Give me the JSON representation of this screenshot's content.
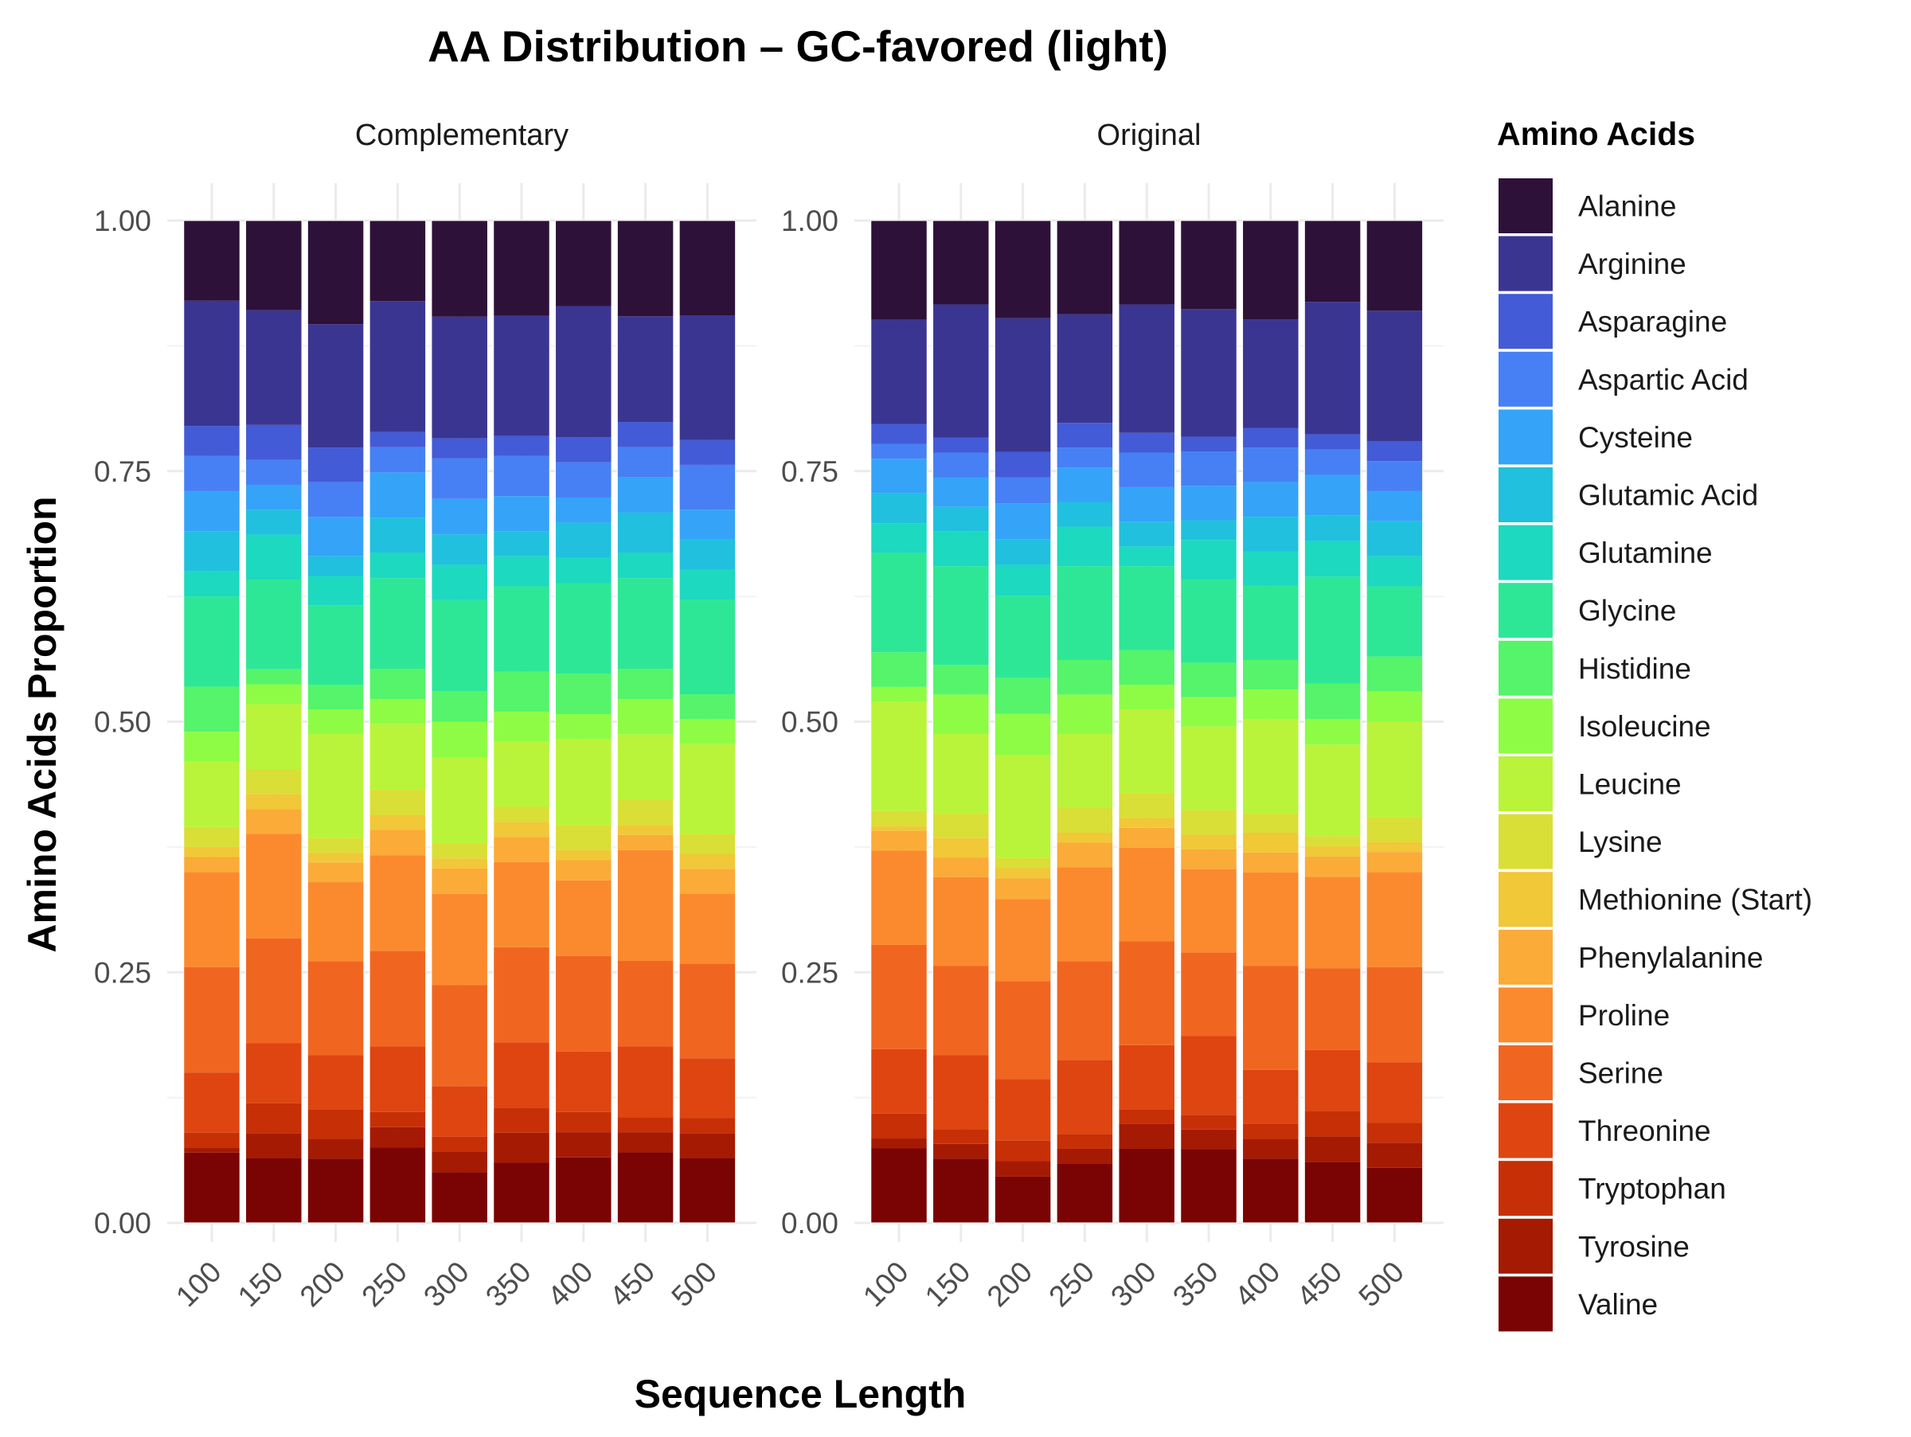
{
  "chart_data": {
    "type": "bar",
    "stacked": true,
    "normalized": true,
    "title": "AA Distribution – GC-favored (light)",
    "xlabel": "Sequence Length",
    "ylabel": "Amino Acids Proportion",
    "ylim": [
      0,
      1
    ],
    "yticks": [
      "0.00",
      "0.25",
      "0.50",
      "0.75",
      "1.00"
    ],
    "categories": [
      "100",
      "150",
      "200",
      "250",
      "300",
      "350",
      "400",
      "450",
      "500"
    ],
    "grid": true,
    "legend": {
      "title": "Amino Acids",
      "position": "right"
    },
    "series_colors": {
      "Alanine": "#2e1139",
      "Arginine": "#3b3592",
      "Asparagine": "#435bd6",
      "Aspartic Acid": "#4680f4",
      "Cysteine": "#35a3f8",
      "Glutamic Acid": "#20c0de",
      "Glutamine": "#1cd9bf",
      "Glycine": "#2de797",
      "Histidine": "#55f46a",
      "Isoleucine": "#8efc45",
      "Leucine": "#b9f43a",
      "Lysine": "#d9df36",
      "Methionine (Start)": "#f0c838",
      "Phenylalanine": "#fbab37",
      "Proline": "#fb8a2e",
      "Serine": "#f06620",
      "Threonine": "#df4510",
      "Tryptophan": "#c72f06",
      "Tyrosine": "#a51a02",
      "Valine": "#7a0403"
    },
    "panels": [
      {
        "strip": "Complementary",
        "series": [
          {
            "name": "Valine",
            "values": [
              0.07,
              0.065,
              0.065,
              0.075,
              0.05,
              0.06,
              0.065,
              0.07,
              0.065
            ]
          },
          {
            "name": "Tyrosine",
            "values": [
              0.005,
              0.025,
              0.02,
              0.02,
              0.02,
              0.03,
              0.025,
              0.02,
              0.025
            ]
          },
          {
            "name": "Tryptophan",
            "values": [
              0.015,
              0.03,
              0.03,
              0.015,
              0.015,
              0.025,
              0.02,
              0.015,
              0.015
            ]
          },
          {
            "name": "Threonine",
            "values": [
              0.06,
              0.06,
              0.055,
              0.065,
              0.05,
              0.065,
              0.06,
              0.07,
              0.06
            ]
          },
          {
            "name": "Serine",
            "values": [
              0.105,
              0.105,
              0.095,
              0.095,
              0.1,
              0.095,
              0.095,
              0.085,
              0.095
            ]
          },
          {
            "name": "Proline",
            "values": [
              0.095,
              0.105,
              0.08,
              0.095,
              0.09,
              0.085,
              0.075,
              0.11,
              0.07
            ]
          },
          {
            "name": "Phenylalanine",
            "values": [
              0.015,
              0.025,
              0.02,
              0.025,
              0.025,
              0.025,
              0.02,
              0.015,
              0.025
            ]
          },
          {
            "name": "Methionine (Start)",
            "values": [
              0.01,
              0.015,
              0.01,
              0.015,
              0.01,
              0.015,
              0.01,
              0.01,
              0.015
            ]
          },
          {
            "name": "Lysine",
            "values": [
              0.02,
              0.025,
              0.015,
              0.025,
              0.015,
              0.015,
              0.025,
              0.025,
              0.02
            ]
          },
          {
            "name": "Leucine",
            "values": [
              0.065,
              0.065,
              0.105,
              0.065,
              0.085,
              0.065,
              0.085,
              0.065,
              0.09
            ]
          },
          {
            "name": "Isoleucine",
            "values": [
              0.03,
              0.02,
              0.025,
              0.025,
              0.035,
              0.03,
              0.025,
              0.035,
              0.025
            ]
          },
          {
            "name": "Histidine",
            "values": [
              0.045,
              0.015,
              0.025,
              0.03,
              0.03,
              0.04,
              0.04,
              0.03,
              0.025
            ]
          },
          {
            "name": "Glycine",
            "values": [
              0.09,
              0.09,
              0.08,
              0.09,
              0.09,
              0.085,
              0.09,
              0.09,
              0.095
            ]
          },
          {
            "name": "Glutamine",
            "values": [
              0.025,
              0.045,
              0.03,
              0.025,
              0.035,
              0.03,
              0.025,
              0.025,
              0.03
            ]
          },
          {
            "name": "Glutamic Acid",
            "values": [
              0.04,
              0.025,
              0.02,
              0.035,
              0.03,
              0.025,
              0.035,
              0.04,
              0.03
            ]
          },
          {
            "name": "Cysteine",
            "values": [
              0.04,
              0.025,
              0.04,
              0.045,
              0.035,
              0.035,
              0.025,
              0.035,
              0.03
            ]
          },
          {
            "name": "Aspartic Acid",
            "values": [
              0.035,
              0.025,
              0.035,
              0.025,
              0.04,
              0.04,
              0.035,
              0.03,
              0.045
            ]
          },
          {
            "name": "Asparagine",
            "values": [
              0.03,
              0.035,
              0.035,
              0.015,
              0.02,
              0.02,
              0.025,
              0.025,
              0.025
            ]
          },
          {
            "name": "Arginine",
            "values": [
              0.125,
              0.115,
              0.125,
              0.13,
              0.12,
              0.12,
              0.13,
              0.105,
              0.125
            ]
          },
          {
            "name": "Alanine",
            "values": [
              0.08,
              0.09,
              0.105,
              0.08,
              0.095,
              0.095,
              0.085,
              0.095,
              0.095
            ]
          }
        ]
      },
      {
        "strip": "Original",
        "series": [
          {
            "name": "Valine",
            "values": [
              0.075,
              0.065,
              0.045,
              0.06,
              0.075,
              0.075,
              0.065,
              0.06,
              0.055
            ]
          },
          {
            "name": "Tyrosine",
            "values": [
              0.01,
              0.015,
              0.015,
              0.015,
              0.025,
              0.02,
              0.02,
              0.025,
              0.025
            ]
          },
          {
            "name": "Tryptophan",
            "values": [
              0.025,
              0.015,
              0.02,
              0.015,
              0.015,
              0.015,
              0.015,
              0.025,
              0.02
            ]
          },
          {
            "name": "Threonine",
            "values": [
              0.065,
              0.075,
              0.06,
              0.075,
              0.065,
              0.08,
              0.055,
              0.06,
              0.06
            ]
          },
          {
            "name": "Serine",
            "values": [
              0.105,
              0.09,
              0.095,
              0.1,
              0.105,
              0.085,
              0.105,
              0.08,
              0.095
            ]
          },
          {
            "name": "Proline",
            "values": [
              0.095,
              0.09,
              0.08,
              0.095,
              0.095,
              0.085,
              0.095,
              0.09,
              0.095
            ]
          },
          {
            "name": "Phenylalanine",
            "values": [
              0.02,
              0.02,
              0.02,
              0.025,
              0.02,
              0.02,
              0.02,
              0.02,
              0.02
            ]
          },
          {
            "name": "Methionine (Start)",
            "values": [
              0.005,
              0.02,
              0.01,
              0.01,
              0.01,
              0.015,
              0.02,
              0.01,
              0.01
            ]
          },
          {
            "name": "Lysine",
            "values": [
              0.015,
              0.025,
              0.01,
              0.025,
              0.025,
              0.025,
              0.02,
              0.01,
              0.025
            ]
          },
          {
            "name": "Leucine",
            "values": [
              0.11,
              0.08,
              0.1,
              0.075,
              0.085,
              0.085,
              0.095,
              0.09,
              0.095
            ]
          },
          {
            "name": "Isoleucine",
            "values": [
              0.015,
              0.04,
              0.04,
              0.04,
              0.025,
              0.03,
              0.03,
              0.025,
              0.03
            ]
          },
          {
            "name": "Histidine",
            "values": [
              0.035,
              0.03,
              0.035,
              0.035,
              0.035,
              0.035,
              0.03,
              0.035,
              0.035
            ]
          },
          {
            "name": "Glycine",
            "values": [
              0.1,
              0.1,
              0.08,
              0.095,
              0.085,
              0.085,
              0.075,
              0.105,
              0.07
            ]
          },
          {
            "name": "Glutamine",
            "values": [
              0.03,
              0.035,
              0.03,
              0.04,
              0.02,
              0.04,
              0.035,
              0.035,
              0.03
            ]
          },
          {
            "name": "Glutamic Acid",
            "values": [
              0.03,
              0.025,
              0.025,
              0.025,
              0.025,
              0.02,
              0.035,
              0.025,
              0.035
            ]
          },
          {
            "name": "Cysteine",
            "values": [
              0.035,
              0.03,
              0.035,
              0.035,
              0.035,
              0.035,
              0.035,
              0.04,
              0.03
            ]
          },
          {
            "name": "Aspartic Acid",
            "values": [
              0.015,
              0.025,
              0.025,
              0.02,
              0.035,
              0.035,
              0.035,
              0.025,
              0.03
            ]
          },
          {
            "name": "Asparagine",
            "values": [
              0.02,
              0.015,
              0.025,
              0.025,
              0.02,
              0.015,
              0.02,
              0.015,
              0.02
            ]
          },
          {
            "name": "Arginine",
            "values": [
              0.105,
              0.135,
              0.13,
              0.11,
              0.13,
              0.13,
              0.11,
              0.13,
              0.13
            ]
          },
          {
            "name": "Alanine",
            "values": [
              0.1,
              0.085,
              0.095,
              0.095,
              0.085,
              0.09,
              0.1,
              0.08,
              0.09
            ]
          }
        ]
      }
    ]
  }
}
